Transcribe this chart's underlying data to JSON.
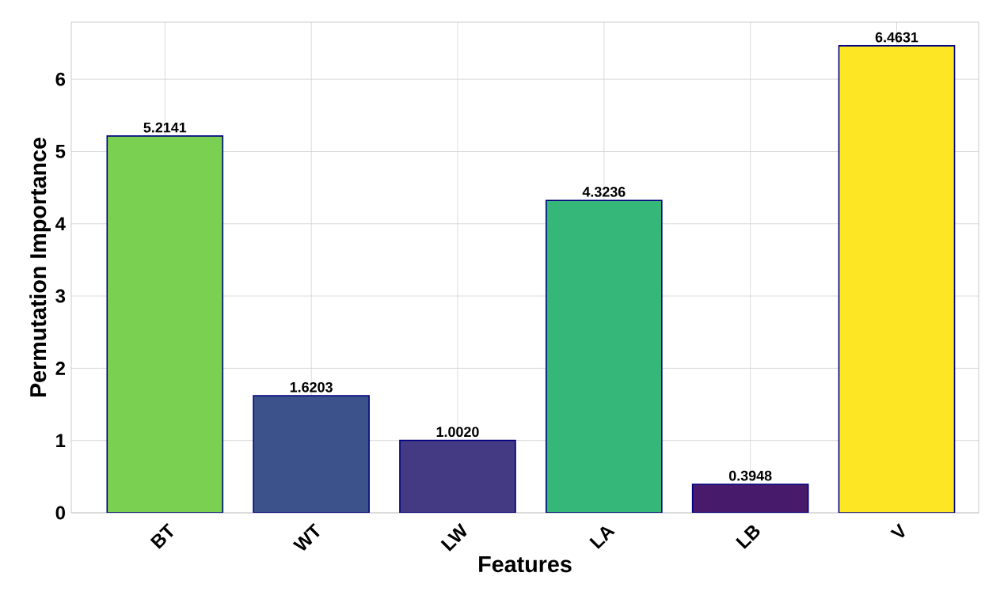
{
  "chart_data": {
    "type": "bar",
    "xlabel": "Features",
    "ylabel": "Permutation Importance",
    "categories": [
      "BT",
      "WT",
      "LW",
      "LA",
      "LB",
      "V"
    ],
    "values": [
      5.2141,
      1.6203,
      1.002,
      4.3236,
      0.3948,
      6.4631
    ],
    "value_labels": [
      "5.2141",
      "1.6203",
      "1.0020",
      "4.3236",
      "0.3948",
      "6.4631"
    ],
    "colors": [
      "#7ad151",
      "#3b528b",
      "#443983",
      "#35b779",
      "#481a6c",
      "#fde725"
    ],
    "ylim": [
      0,
      6.79
    ],
    "yticks": [
      0,
      1,
      2,
      3,
      4,
      5,
      6
    ],
    "grid": true
  }
}
